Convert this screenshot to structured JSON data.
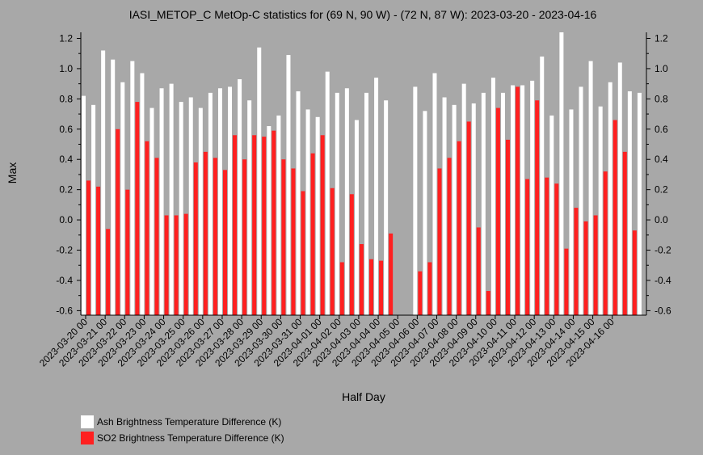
{
  "chart_data": {
    "type": "bar",
    "title": "IASI_METOP_C MetOp-C statistics for (69 N, 90 W) - (72 N, 87 W): 2023-03-20 - 2023-04-16",
    "xlabel": "Half Day",
    "ylabel": "Max",
    "ylim": [
      -0.63,
      1.24
    ],
    "yticks": [
      "1.2",
      "1.0",
      "0.8",
      "0.6",
      "0.4",
      "0.2",
      "0.0",
      "-0.2",
      "-0.4",
      "-0.6"
    ],
    "x_tick_labels": [
      "2023-03-20 00",
      "2023-03-21 00",
      "2023-03-22 00",
      "2023-03-23 00",
      "2023-03-24 00",
      "2023-03-25 00",
      "2023-03-26 00",
      "2023-03-27 00",
      "2023-03-28 00",
      "2023-03-29 00",
      "2023-03-30 00",
      "2023-03-31 00",
      "2023-04-01 00",
      "2023-04-02 00",
      "2023-04-03 00",
      "2023-04-04 00",
      "2023-04-05 00",
      "2023-04-06 00",
      "2023-04-07 00",
      "2023-04-08 00",
      "2023-04-09 00",
      "2023-04-10 00",
      "2023-04-11 00",
      "2023-04-12 00",
      "2023-04-13 00",
      "2023-04-14 00",
      "2023-04-15 00",
      "2023-04-16 00"
    ],
    "grid": false,
    "legend_position": "bottom-left",
    "series": [
      {
        "name": "Ash Brightness Temperature Difference (K)",
        "color": "#ffffff",
        "values": [
          0.82,
          0.76,
          1.12,
          1.06,
          0.91,
          1.05,
          0.97,
          0.74,
          0.87,
          0.9,
          0.78,
          0.81,
          0.74,
          0.84,
          0.87,
          0.88,
          0.93,
          0.79,
          1.14,
          0.62,
          0.69,
          1.09,
          0.85,
          0.73,
          0.68,
          0.98,
          0.84,
          0.87,
          0.66,
          0.84,
          0.94,
          0.79,
          null,
          null,
          0.88,
          0.72,
          0.97,
          0.81,
          0.76,
          0.9,
          0.77,
          0.84,
          0.94,
          0.84,
          0.89,
          0.89,
          0.92,
          1.08,
          0.69,
          1.24,
          0.73,
          0.88,
          1.05,
          0.75,
          0.91,
          1.04,
          0.85,
          0.84
        ]
      },
      {
        "name": "SO2 Brightness Temperature Difference (K)",
        "color": "#ff2020",
        "values": [
          0.26,
          0.22,
          -0.06,
          0.6,
          0.2,
          0.78,
          0.52,
          0.41,
          0.03,
          0.03,
          0.04,
          0.38,
          0.45,
          0.41,
          0.33,
          0.56,
          0.4,
          0.56,
          0.55,
          0.59,
          0.4,
          0.34,
          0.19,
          0.44,
          0.56,
          0.21,
          -0.28,
          0.17,
          -0.16,
          -0.26,
          -0.27,
          -0.09,
          null,
          null,
          -0.34,
          -0.28,
          0.34,
          0.41,
          0.52,
          0.65,
          -0.05,
          -0.47,
          0.74,
          0.53,
          0.88,
          0.27,
          0.79,
          0.28,
          0.24,
          -0.19,
          0.08,
          -0.01,
          0.03,
          0.32,
          0.66,
          0.45,
          -0.07,
          null
        ]
      }
    ]
  }
}
